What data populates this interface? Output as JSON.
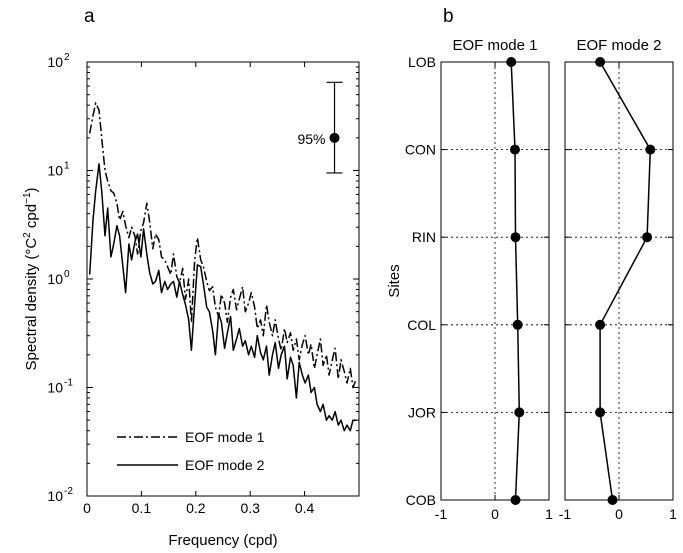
{
  "chart_data": [
    {
      "type": "line",
      "panel_label": "a",
      "xlabel": "Frequency (cpd)",
      "ylabel": "Spectral density (°C² cpd⁻¹)",
      "ylabel_parts": {
        "main": "Spectral density (°C",
        "sup1": "2",
        "mid": " cpd",
        "sup2": "−1",
        "end": ")"
      },
      "xscale": "linear",
      "yscale": "log",
      "xlim": [
        0,
        0.5
      ],
      "ylim": [
        0.01,
        100
      ],
      "xticks": [
        0,
        0.1,
        0.2,
        0.3,
        0.4
      ],
      "xtick_labels": [
        "0",
        "0.1",
        "0.2",
        "0.3",
        "0.4"
      ],
      "yticks": [
        0.01,
        0.1,
        1,
        10,
        100
      ],
      "ytick_labels": [
        {
          "base": "10",
          "exp": "-2"
        },
        {
          "base": "10",
          "exp": "-1"
        },
        {
          "base": "10",
          "exp": "0"
        },
        {
          "base": "10",
          "exp": "1"
        },
        {
          "base": "10",
          "exp": "2"
        }
      ],
      "legend_placement": "lower-left",
      "confidence_interval": {
        "label": "95%",
        "x": 0.455,
        "center": 20,
        "lower": 9.5,
        "upper": 65
      },
      "series": [
        {
          "name": "EOF mode 1",
          "style": "dashdot",
          "x": [
            0.005,
            0.011,
            0.016,
            0.022,
            0.027,
            0.033,
            0.038,
            0.044,
            0.049,
            0.055,
            0.06,
            0.066,
            0.071,
            0.077,
            0.082,
            0.088,
            0.093,
            0.099,
            0.104,
            0.11,
            0.115,
            0.121,
            0.126,
            0.132,
            0.137,
            0.143,
            0.148,
            0.154,
            0.159,
            0.165,
            0.17,
            0.176,
            0.181,
            0.187,
            0.192,
            0.198,
            0.203,
            0.209,
            0.214,
            0.22,
            0.225,
            0.231,
            0.236,
            0.242,
            0.247,
            0.253,
            0.258,
            0.264,
            0.269,
            0.275,
            0.28,
            0.286,
            0.291,
            0.297,
            0.302,
            0.308,
            0.313,
            0.319,
            0.324,
            0.33,
            0.335,
            0.341,
            0.346,
            0.352,
            0.357,
            0.363,
            0.368,
            0.374,
            0.379,
            0.385,
            0.39,
            0.396,
            0.401,
            0.407,
            0.412,
            0.418,
            0.423,
            0.429,
            0.434,
            0.44,
            0.445,
            0.451,
            0.456,
            0.462,
            0.467,
            0.473,
            0.478,
            0.484,
            0.489,
            0.495
          ],
          "y": [
            22,
            32,
            42,
            36,
            20,
            10,
            8,
            6.5,
            6.2,
            5,
            3.5,
            4.2,
            3.1,
            2.4,
            3.0,
            2.5,
            1.7,
            2.8,
            3.3,
            5.0,
            3.4,
            1.9,
            2.6,
            2.3,
            1.6,
            1.5,
            1.3,
            1.1,
            1.7,
            1.05,
            0.92,
            1.25,
            0.65,
            1.0,
            0.4,
            1.5,
            2.4,
            1.5,
            1.3,
            0.95,
            0.78,
            0.85,
            0.55,
            0.45,
            0.72,
            0.6,
            0.4,
            0.68,
            0.8,
            0.52,
            0.65,
            0.85,
            0.5,
            0.6,
            0.75,
            0.55,
            0.35,
            0.42,
            0.3,
            0.58,
            0.4,
            0.3,
            0.42,
            0.28,
            0.22,
            0.35,
            0.26,
            0.32,
            0.22,
            0.28,
            0.18,
            0.25,
            0.3,
            0.2,
            0.25,
            0.15,
            0.2,
            0.28,
            0.16,
            0.2,
            0.13,
            0.18,
            0.23,
            0.12,
            0.18,
            0.14,
            0.11,
            0.15,
            0.1,
            0.12
          ]
        },
        {
          "name": "EOF mode 2",
          "style": "solid",
          "x": [
            0.005,
            0.011,
            0.016,
            0.022,
            0.027,
            0.033,
            0.038,
            0.044,
            0.049,
            0.055,
            0.06,
            0.066,
            0.071,
            0.077,
            0.082,
            0.088,
            0.093,
            0.099,
            0.104,
            0.11,
            0.115,
            0.121,
            0.126,
            0.132,
            0.137,
            0.143,
            0.148,
            0.154,
            0.159,
            0.165,
            0.17,
            0.176,
            0.181,
            0.187,
            0.192,
            0.198,
            0.203,
            0.209,
            0.214,
            0.22,
            0.225,
            0.231,
            0.236,
            0.242,
            0.247,
            0.253,
            0.258,
            0.264,
            0.269,
            0.275,
            0.28,
            0.286,
            0.291,
            0.297,
            0.302,
            0.308,
            0.313,
            0.319,
            0.324,
            0.33,
            0.335,
            0.341,
            0.346,
            0.352,
            0.357,
            0.363,
            0.368,
            0.374,
            0.379,
            0.385,
            0.39,
            0.396,
            0.401,
            0.407,
            0.412,
            0.418,
            0.423,
            0.429,
            0.434,
            0.44,
            0.445,
            0.451,
            0.456,
            0.462,
            0.467,
            0.473,
            0.478,
            0.484,
            0.489,
            0.495
          ],
          "y": [
            1.1,
            3.5,
            6.5,
            11.5,
            6.5,
            2.5,
            4.5,
            1.6,
            2.1,
            3.1,
            2.5,
            1.3,
            0.75,
            2.1,
            1.5,
            2.2,
            2.6,
            1.6,
            2.9,
            1.7,
            1.15,
            0.9,
            0.95,
            1.2,
            0.75,
            0.95,
            0.8,
            0.9,
            0.95,
            0.68,
            0.95,
            0.72,
            0.58,
            0.42,
            0.22,
            0.6,
            1.35,
            1.3,
            0.9,
            0.55,
            0.5,
            0.33,
            0.2,
            0.48,
            0.4,
            0.23,
            0.32,
            0.45,
            0.22,
            0.28,
            0.35,
            0.24,
            0.27,
            0.2,
            0.24,
            0.19,
            0.3,
            0.21,
            0.18,
            0.24,
            0.13,
            0.2,
            0.26,
            0.15,
            0.2,
            0.24,
            0.12,
            0.19,
            0.16,
            0.08,
            0.17,
            0.13,
            0.11,
            0.13,
            0.09,
            0.1,
            0.07,
            0.06,
            0.07,
            0.05,
            0.055,
            0.05,
            0.06,
            0.045,
            0.05,
            0.04,
            0.045,
            0.04,
            0.05,
            0.05
          ]
        }
      ]
    },
    {
      "type": "line",
      "panel_label": "b",
      "ylabel": "Sites",
      "yscale": "categorical",
      "categories": [
        "LOB",
        "CON",
        "RIN",
        "COL",
        "JOR",
        "COB"
      ],
      "subplots": [
        {
          "title": "EOF mode 1",
          "xlim": [
            -1,
            1
          ],
          "xticks": [
            -1,
            0,
            1
          ],
          "xtick_labels": [
            "-1",
            "0",
            "1"
          ],
          "values": [
            0.3,
            0.37,
            0.38,
            0.42,
            0.45,
            0.38
          ]
        },
        {
          "title": "EOF mode 2",
          "xlim": [
            -1,
            1
          ],
          "xticks": [
            -1,
            0,
            1
          ],
          "xtick_labels": [
            "-1",
            "0",
            "1"
          ],
          "values": [
            -0.35,
            0.58,
            0.52,
            -0.35,
            -0.35,
            -0.12
          ]
        }
      ],
      "grid": "dotted"
    }
  ]
}
